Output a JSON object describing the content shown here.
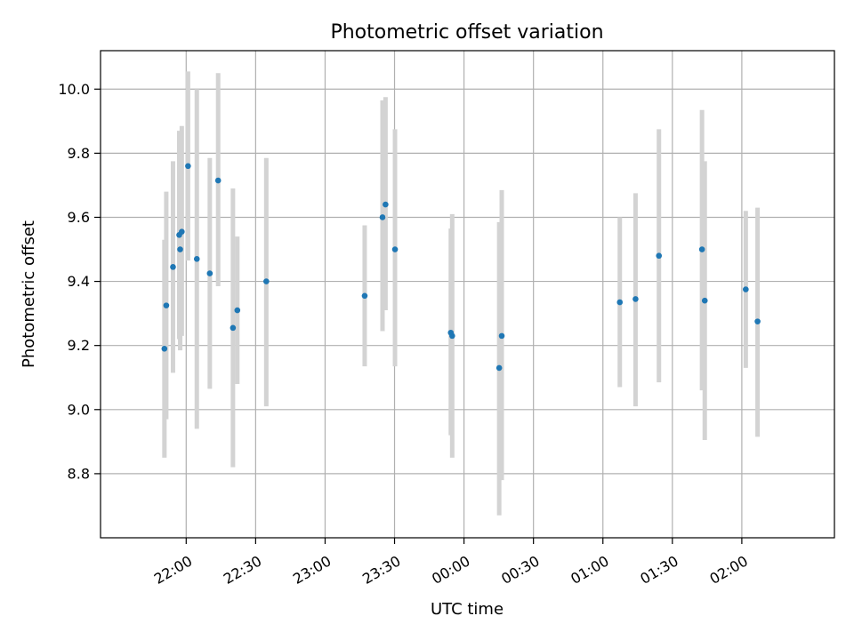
{
  "chart_data": {
    "type": "scatter",
    "title": "Photometric offset variation",
    "xlabel": "UTC time",
    "ylabel": "Photometric offset",
    "xlim_minutes": [
      -37,
      280
    ],
    "ylim": [
      8.6,
      10.12
    ],
    "x_ticks": [
      {
        "label": "22:00",
        "minutes": 0
      },
      {
        "label": "22:30",
        "minutes": 30
      },
      {
        "label": "23:00",
        "minutes": 60
      },
      {
        "label": "23:30",
        "minutes": 90
      },
      {
        "label": "00:00",
        "minutes": 120
      },
      {
        "label": "00:30",
        "minutes": 150
      },
      {
        "label": "01:00",
        "minutes": 180
      },
      {
        "label": "01:30",
        "minutes": 210
      },
      {
        "label": "02:00",
        "minutes": 240
      }
    ],
    "y_ticks": [
      8.8,
      9.0,
      9.2,
      9.4,
      9.6,
      9.8,
      10.0
    ],
    "grid": true,
    "colors": {
      "points": "#1f77b4",
      "errorbars": "#d3d3d3"
    },
    "points": [
      {
        "minutes": -9.4,
        "y": 9.19,
        "low": 8.85,
        "high": 9.53
      },
      {
        "minutes": -8.6,
        "y": 9.325,
        "low": 8.97,
        "high": 9.68
      },
      {
        "minutes": -5.7,
        "y": 9.445,
        "low": 9.115,
        "high": 9.775
      },
      {
        "minutes": -3.0,
        "y": 9.545,
        "low": 9.22,
        "high": 9.87
      },
      {
        "minutes": -2.6,
        "y": 9.5,
        "low": 9.185,
        "high": 9.815
      },
      {
        "minutes": -1.9,
        "y": 9.555,
        "low": 9.23,
        "high": 9.885
      },
      {
        "minutes": 0.8,
        "y": 9.76,
        "low": 9.465,
        "high": 10.055
      },
      {
        "minutes": 4.6,
        "y": 9.47,
        "low": 8.94,
        "high": 10.0
      },
      {
        "minutes": 10.2,
        "y": 9.425,
        "low": 9.065,
        "high": 9.785
      },
      {
        "minutes": 13.8,
        "y": 9.715,
        "low": 9.385,
        "high": 10.05
      },
      {
        "minutes": 20.2,
        "y": 9.255,
        "low": 8.82,
        "high": 9.69
      },
      {
        "minutes": 22.1,
        "y": 9.31,
        "low": 9.08,
        "high": 9.54
      },
      {
        "minutes": 34.6,
        "y": 9.4,
        "low": 9.01,
        "high": 9.785
      },
      {
        "minutes": 77.1,
        "y": 9.355,
        "low": 9.135,
        "high": 9.575
      },
      {
        "minutes": 84.8,
        "y": 9.6,
        "low": 9.245,
        "high": 9.965
      },
      {
        "minutes": 86.1,
        "y": 9.64,
        "low": 9.31,
        "high": 9.975
      },
      {
        "minutes": 90.2,
        "y": 9.5,
        "low": 9.135,
        "high": 9.875
      },
      {
        "minutes": 114.3,
        "y": 9.24,
        "low": 8.92,
        "high": 9.565
      },
      {
        "minutes": 114.9,
        "y": 9.23,
        "low": 8.85,
        "high": 9.61
      },
      {
        "minutes": 135.2,
        "y": 9.13,
        "low": 8.67,
        "high": 9.585
      },
      {
        "minutes": 136.3,
        "y": 9.23,
        "low": 8.78,
        "high": 9.685
      },
      {
        "minutes": 187.3,
        "y": 9.335,
        "low": 9.07,
        "high": 9.6
      },
      {
        "minutes": 194.1,
        "y": 9.345,
        "low": 9.01,
        "high": 9.675
      },
      {
        "minutes": 204.2,
        "y": 9.48,
        "low": 9.085,
        "high": 9.875
      },
      {
        "minutes": 222.8,
        "y": 9.5,
        "low": 9.06,
        "high": 9.935
      },
      {
        "minutes": 224.0,
        "y": 9.34,
        "low": 8.905,
        "high": 9.775
      },
      {
        "minutes": 241.7,
        "y": 9.375,
        "low": 9.13,
        "high": 9.62
      },
      {
        "minutes": 246.8,
        "y": 9.275,
        "low": 8.915,
        "high": 9.63
      }
    ]
  }
}
